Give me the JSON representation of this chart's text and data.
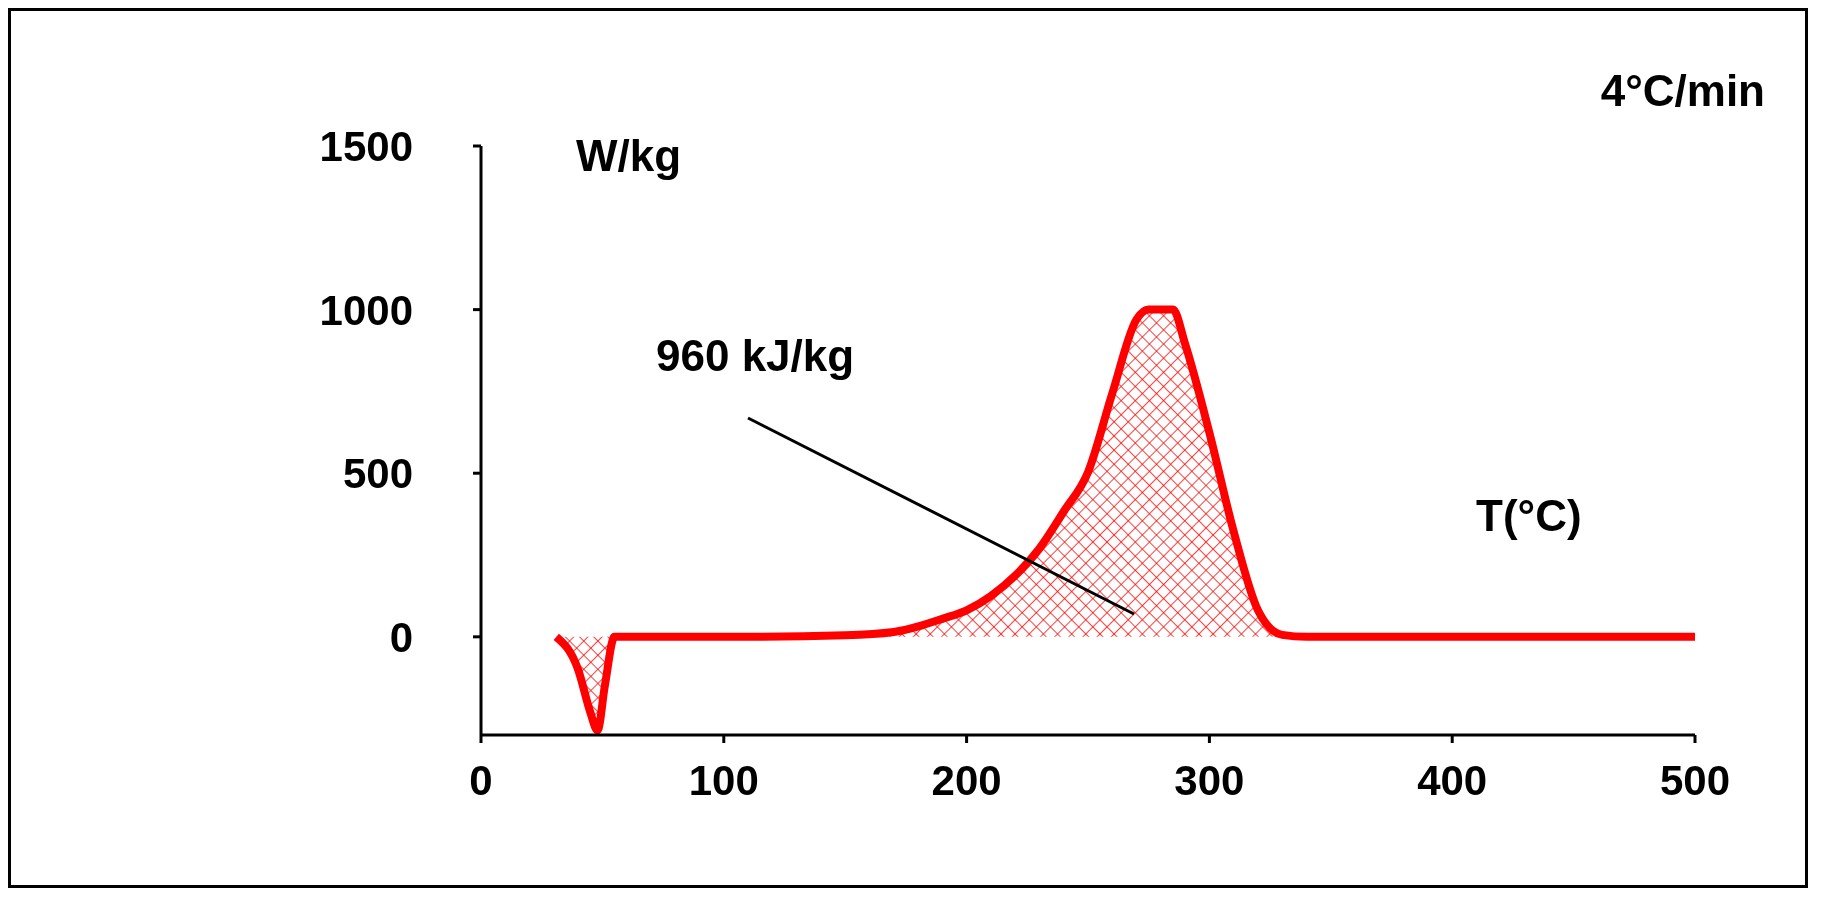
{
  "chart_data": {
    "type": "area",
    "xlabel": "T(°C)",
    "ylabel": "W/kg",
    "annotations": [
      "4°C/min",
      "960 kJ/kg"
    ],
    "x": [
      31,
      40,
      45,
      48,
      51,
      55,
      100,
      150,
      170,
      182,
      190,
      200,
      210,
      220,
      230,
      240,
      250,
      260,
      270,
      275,
      285,
      290,
      300,
      310,
      320,
      330,
      340,
      500
    ],
    "series": [
      {
        "color": "#ff0000",
        "values": [
          0,
          -100,
          -230,
          -286,
          -150,
          0,
          0,
          5,
          15,
          36,
          55,
          81,
          125,
          187,
          270,
          383,
          503,
          744,
          970,
          1000,
          1000,
          895,
          624,
          322,
          81,
          6,
          0,
          0
        ]
      }
    ],
    "xlim": [
      0,
      500
    ],
    "xticks": [
      0,
      100,
      200,
      300,
      400,
      500
    ],
    "ylim": [
      -300,
      1500
    ],
    "yticks": [
      0,
      500,
      1000,
      1500
    ],
    "grid": false,
    "legend": false,
    "line_style": "solid",
    "marker": "none"
  }
}
